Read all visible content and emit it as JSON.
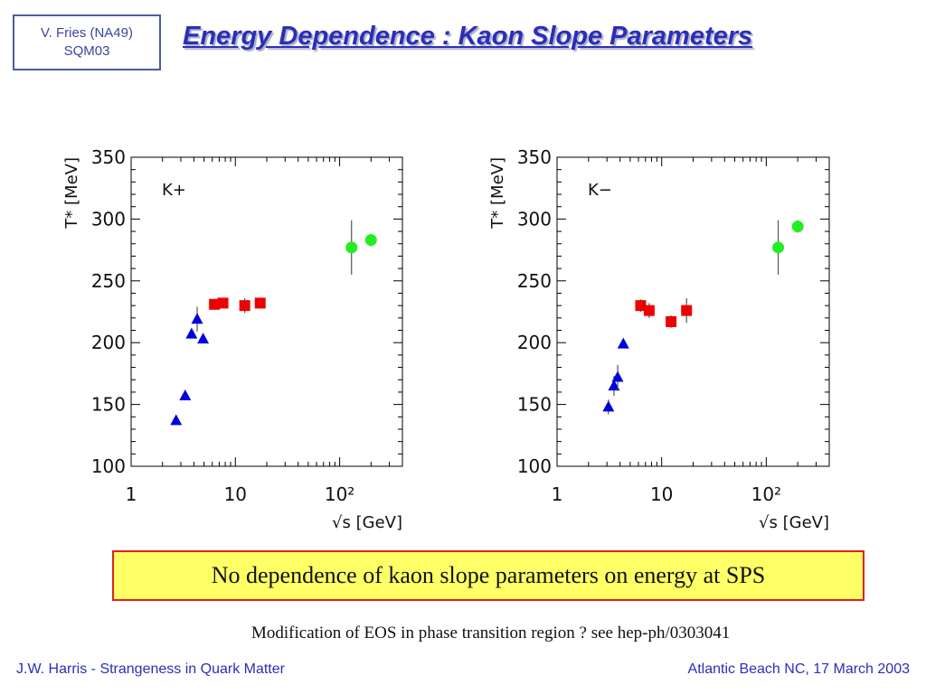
{
  "header": {
    "tag_line1": "V. Fries (NA49)",
    "tag_line2": "SQM03",
    "title": "Energy Dependence : Kaon Slope Parameters"
  },
  "chart_data": [
    {
      "type": "scatter",
      "panel_label": "K+",
      "xlabel": "√s [GeV]",
      "ylabel": "T* [MeV]",
      "xscale": "log",
      "xlim": [
        1,
        400
      ],
      "ylim": [
        100,
        350
      ],
      "xticks": [
        "1",
        "10",
        "10²"
      ],
      "yticks": [
        "100",
        "150",
        "200",
        "250",
        "300",
        "350"
      ],
      "series": [
        {
          "marker": "triangle",
          "color": "#0000dd",
          "points": [
            {
              "x": 2.7,
              "y": 137,
              "err": 0
            },
            {
              "x": 3.3,
              "y": 157,
              "err": 0
            },
            {
              "x": 3.8,
              "y": 207,
              "err": 0
            },
            {
              "x": 4.3,
              "y": 219,
              "err": 10
            },
            {
              "x": 4.9,
              "y": 203,
              "err": 0
            }
          ]
        },
        {
          "marker": "square",
          "color": "#ee0000",
          "points": [
            {
              "x": 6.3,
              "y": 231,
              "err": 4
            },
            {
              "x": 7.6,
              "y": 232,
              "err": 4
            },
            {
              "x": 12.3,
              "y": 230,
              "err": 6
            },
            {
              "x": 17.3,
              "y": 232,
              "err": 4
            }
          ]
        },
        {
          "marker": "circle",
          "color": "#22ee22",
          "points": [
            {
              "x": 130,
              "y": 277,
              "err": 22
            },
            {
              "x": 200,
              "y": 283,
              "err": 5
            }
          ]
        }
      ]
    },
    {
      "type": "scatter",
      "panel_label": "K−",
      "xlabel": "√s [GeV]",
      "ylabel": "T* [MeV]",
      "xscale": "log",
      "xlim": [
        1,
        400
      ],
      "ylim": [
        100,
        350
      ],
      "xticks": [
        "1",
        "10",
        "10²"
      ],
      "yticks": [
        "100",
        "150",
        "200",
        "250",
        "300",
        "350"
      ],
      "series": [
        {
          "marker": "triangle",
          "color": "#0000dd",
          "points": [
            {
              "x": 3.1,
              "y": 148,
              "err": 6
            },
            {
              "x": 3.5,
              "y": 165,
              "err": 8
            },
            {
              "x": 3.8,
              "y": 172,
              "err": 10
            },
            {
              "x": 4.3,
              "y": 199,
              "err": 0
            }
          ]
        },
        {
          "marker": "square",
          "color": "#ee0000",
          "points": [
            {
              "x": 6.3,
              "y": 230,
              "err": 5
            },
            {
              "x": 7.6,
              "y": 226,
              "err": 6
            },
            {
              "x": 12.3,
              "y": 217,
              "err": 5
            },
            {
              "x": 17.3,
              "y": 226,
              "err": 10
            }
          ]
        },
        {
          "marker": "circle",
          "color": "#22ee22",
          "points": [
            {
              "x": 130,
              "y": 277,
              "err": 22
            },
            {
              "x": 200,
              "y": 294,
              "err": 5
            }
          ]
        }
      ]
    }
  ],
  "callout": "No dependence of kaon slope parameters on energy at SPS",
  "note": "Modification of EOS in phase transition region ? see hep-ph/0303041",
  "footer": {
    "left": "J.W. Harris - Strangeness in Quark Matter",
    "right": "Atlantic Beach NC, 17 March 2003"
  }
}
